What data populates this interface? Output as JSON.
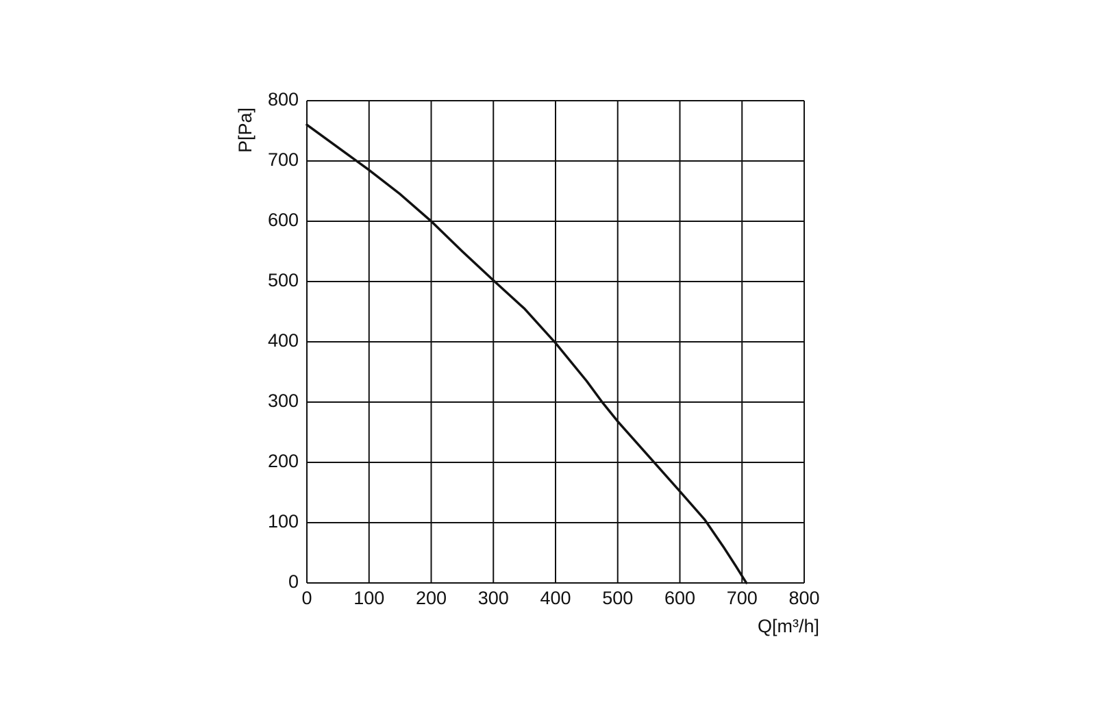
{
  "chart_data": {
    "type": "line",
    "x_label": "Q[m³/h]",
    "y_label": "P[Pa]",
    "x": [
      0,
      80,
      100,
      150,
      200,
      250,
      300,
      350,
      400,
      450,
      475,
      500,
      550,
      600,
      640,
      670,
      690,
      707
    ],
    "values": [
      760,
      700,
      685,
      645,
      600,
      550,
      502,
      455,
      398,
      335,
      300,
      268,
      210,
      152,
      105,
      60,
      28,
      0
    ],
    "color": "#111111",
    "xlim": [
      0,
      800
    ],
    "ylim": [
      0,
      800
    ],
    "xticks": [
      0,
      100,
      200,
      300,
      400,
      500,
      600,
      700,
      800
    ],
    "yticks": [
      0,
      100,
      200,
      300,
      400,
      500,
      600,
      700,
      800
    ],
    "grid": true
  }
}
